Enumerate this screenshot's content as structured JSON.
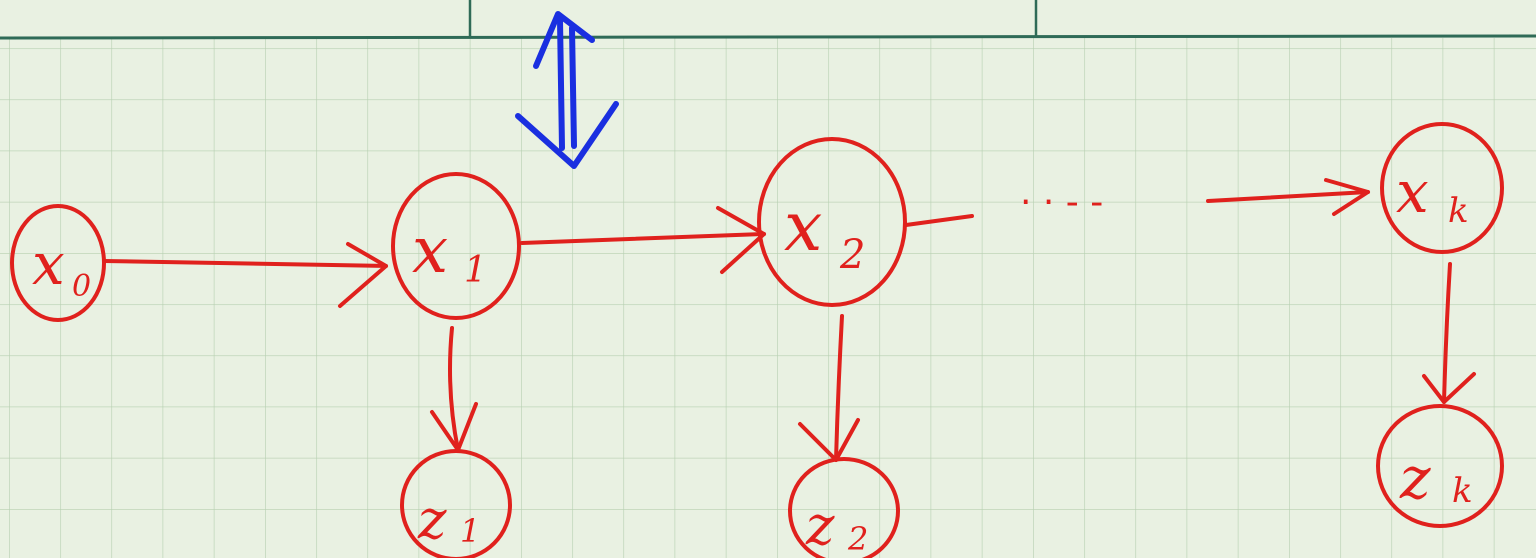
{
  "diagram": {
    "colors": {
      "background": "#e9f1e2",
      "grid_line": "#b6cfb0",
      "header_line": "#2f6b57",
      "ink": "#e0211d",
      "accent": "#1a2fe0"
    },
    "hidden_nodes": [
      {
        "id": "x0",
        "base": "x",
        "sub": "0"
      },
      {
        "id": "x1",
        "base": "x",
        "sub": "1"
      },
      {
        "id": "x2",
        "base": "x",
        "sub": "2"
      },
      {
        "id": "xk",
        "base": "x",
        "sub": "k"
      }
    ],
    "observed_nodes": [
      {
        "id": "z1",
        "base": "z",
        "sub": "1"
      },
      {
        "id": "z2",
        "base": "z",
        "sub": "2"
      },
      {
        "id": "zk",
        "base": "z",
        "sub": "k"
      }
    ],
    "ellipsis": "· · - -"
  }
}
